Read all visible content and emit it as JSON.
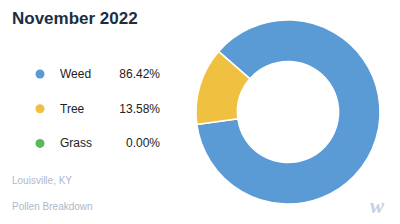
{
  "chart_data": {
    "type": "pie",
    "title": "November 2022",
    "subtitle": [
      "Louisville, KY",
      "Pollen Breakdown"
    ],
    "annotations": [
      "w"
    ],
    "categories": [
      "Weed",
      "Tree",
      "Grass"
    ],
    "values": [
      86.42,
      13.58,
      0.001
    ],
    "value_labels": [
      "86.42%",
      "13.58%",
      "0.00%"
    ],
    "colors": [
      "#5b9bd5",
      "#f0c040",
      "#5cb85c"
    ],
    "legend": "left"
  }
}
